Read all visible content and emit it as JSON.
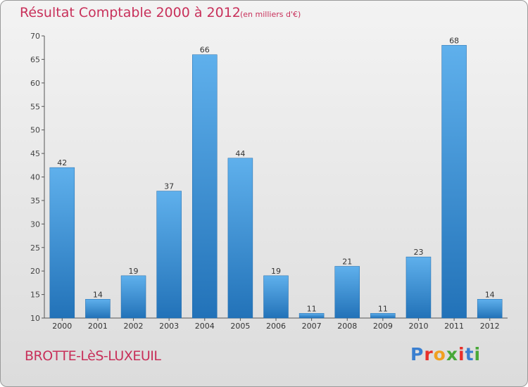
{
  "chart_data": {
    "type": "bar",
    "title": "Résultat Comptable 2000 à 2012",
    "subtitle": "(en milliers d'€)",
    "categories": [
      "2000",
      "2001",
      "2002",
      "2003",
      "2004",
      "2005",
      "2006",
      "2007",
      "2008",
      "2009",
      "2010",
      "2011",
      "2012"
    ],
    "values": [
      42,
      14,
      19,
      37,
      66,
      44,
      19,
      11,
      21,
      11,
      23,
      68,
      14
    ],
    "ylim": [
      10,
      70
    ],
    "yticks": [
      10,
      15,
      20,
      25,
      30,
      35,
      40,
      45,
      50,
      55,
      60,
      65,
      70
    ],
    "xlabel": "",
    "ylabel": "",
    "grid": false,
    "bar_color": "#3a8fd6"
  },
  "footer": {
    "commune": "BROTTE-LèS-LUXEUIL",
    "logo_letters": [
      "P",
      "r",
      "o",
      "x",
      "i",
      "t",
      "i"
    ],
    "logo_colors": [
      "#3a7fd0",
      "#e8302a",
      "#f0a020",
      "#48a838",
      "#e8302a",
      "#3a7fd0",
      "#48a838"
    ]
  }
}
